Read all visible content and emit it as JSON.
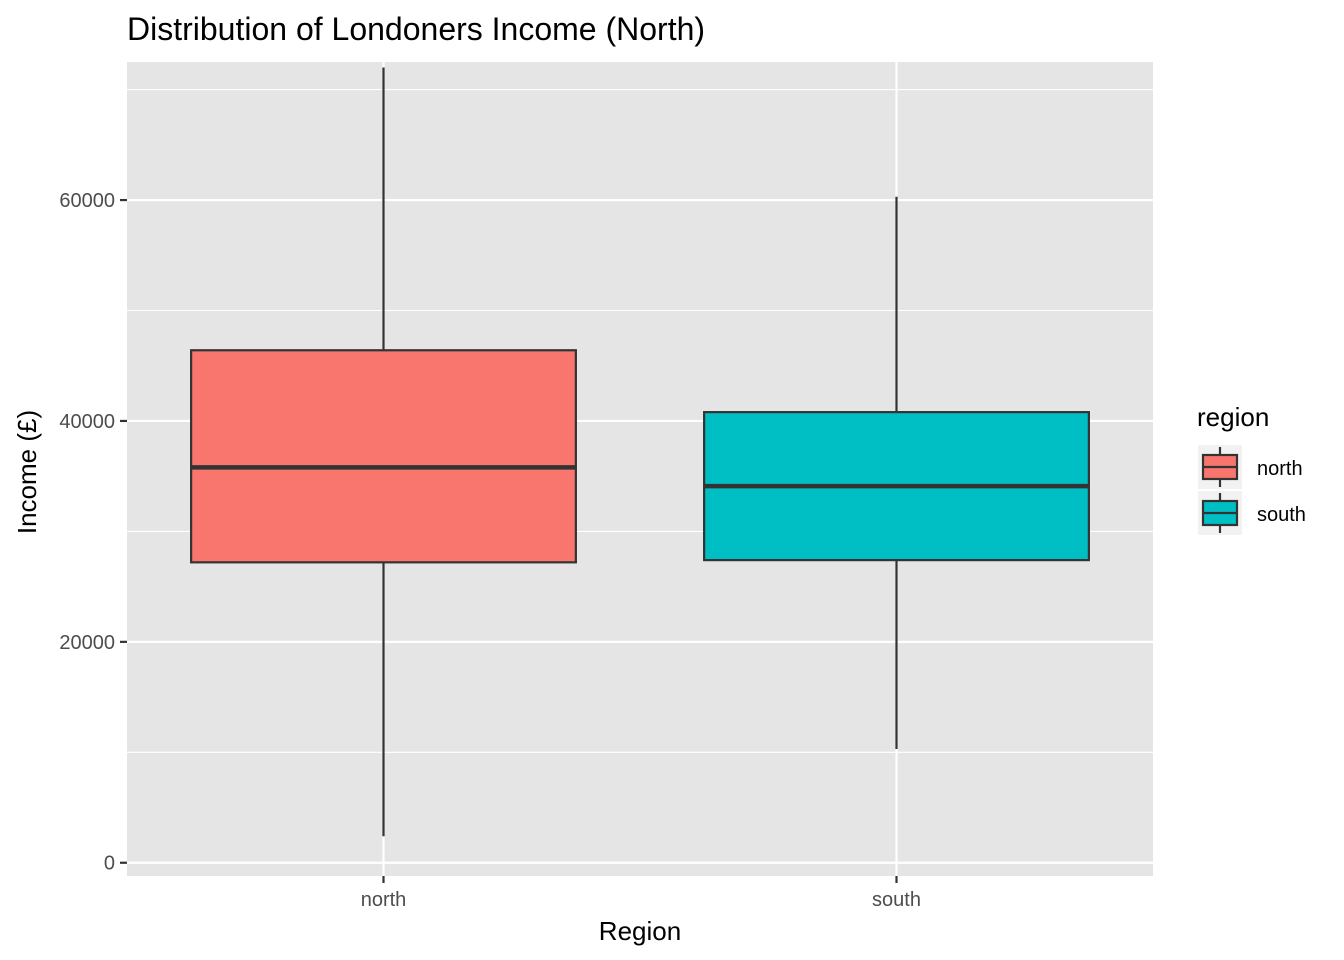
{
  "chart_data": {
    "type": "boxplot",
    "title": "Distribution of Londoners Income (North)",
    "xlabel": "Region",
    "ylabel": "Income (£)",
    "ylim": [
      -1200,
      72500
    ],
    "yticks": [
      0,
      20000,
      40000,
      60000
    ],
    "ytick_labels": [
      "0",
      "20000",
      "40000",
      "60000"
    ],
    "grid": true,
    "legend": {
      "title": "region",
      "position": "right",
      "entries": [
        "north",
        "south"
      ]
    },
    "categories": [
      "north",
      "south"
    ],
    "series": [
      {
        "name": "north",
        "color": "#F8766D",
        "whisker_low": 2400,
        "q1": 27200,
        "median": 35800,
        "q3": 46400,
        "whisker_high": 72000
      },
      {
        "name": "south",
        "color": "#00BFC4",
        "whisker_low": 10300,
        "q1": 27400,
        "median": 34100,
        "q3": 40800,
        "whisker_high": 60300
      }
    ],
    "colors": {
      "panel_background": "#e5e5e5",
      "grid_line": "#ffffff",
      "box_outline": "#333333"
    }
  }
}
